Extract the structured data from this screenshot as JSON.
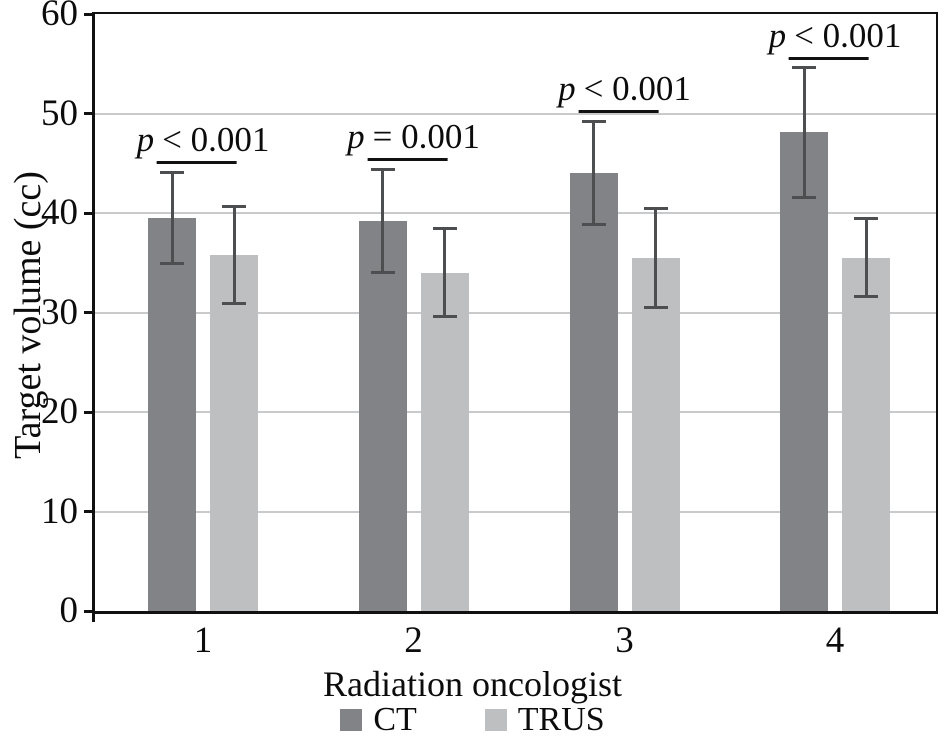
{
  "chart_data": {
    "type": "bar",
    "title": "",
    "xlabel": "Radiation oncologist",
    "ylabel": "Target volume (cc)",
    "categories": [
      "1",
      "2",
      "3",
      "4"
    ],
    "series": [
      {
        "name": "CT",
        "color": "#818386",
        "values": [
          39.5,
          39.2,
          44.0,
          48.1
        ],
        "errors": [
          4.6,
          5.2,
          5.2,
          6.5
        ]
      },
      {
        "name": "TRUS",
        "color": "#bebfc1",
        "values": [
          35.8,
          34.0,
          35.5,
          35.5
        ],
        "errors": [
          4.9,
          4.4,
          5.0,
          3.9
        ]
      }
    ],
    "annotations": [
      {
        "p": "p",
        "rest": "< 0.001"
      },
      {
        "p": "p",
        "rest": "= 0.001"
      },
      {
        "p": "p",
        "rest": "< 0.001"
      },
      {
        "p": "p",
        "rest": "< 0.001"
      }
    ],
    "ylim": [
      0,
      60
    ],
    "yticks": [
      0,
      10,
      20,
      30,
      40,
      50,
      60
    ],
    "grid": true,
    "legend_position": "bottom",
    "error_bar_color": "#4d4e50",
    "gridline_color": "#c9cacc",
    "axis_color": "#111111"
  }
}
